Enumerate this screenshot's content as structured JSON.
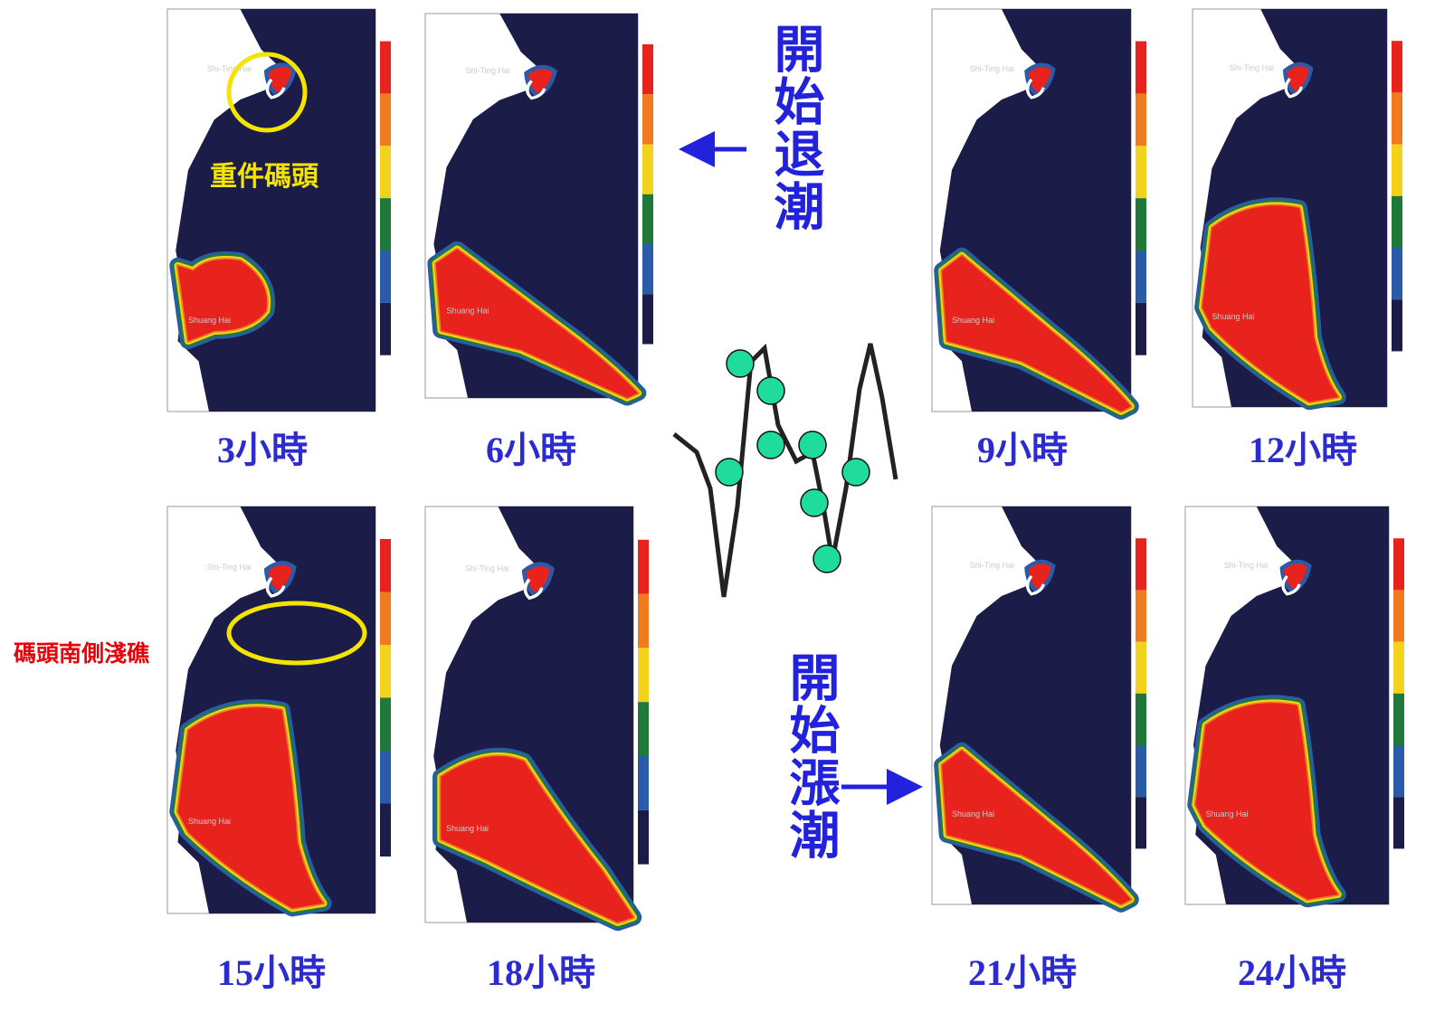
{
  "panels": [
    {
      "label": "3小時",
      "top_place": "Shi-Ting Hai",
      "bottom_place": "Shuang Hai"
    },
    {
      "label": "6小時",
      "top_place": "Shi-Ting Hai",
      "bottom_place": "Shuang Hai"
    },
    {
      "label": "9小時",
      "top_place": "Shi-Ting Hai",
      "bottom_place": "Shuang Hai"
    },
    {
      "label": "12小時",
      "top_place": "Shi-Ting Hai",
      "bottom_place": "Shuang Hai"
    },
    {
      "label": "15小時",
      "top_place": "Shi-Ting Hai",
      "bottom_place": "Shuang Hai"
    },
    {
      "label": "18小時",
      "top_place": "Shi-Ting Hai",
      "bottom_place": "Shuang Hai"
    },
    {
      "label": "21小時",
      "top_place": "Shi-Ting Hai",
      "bottom_place": "Shuang Hai"
    },
    {
      "label": "24小時",
      "top_place": "Shi-Ting Hai",
      "bottom_place": "Shuang Hai"
    }
  ],
  "annotations": {
    "pier": "重件碼頭",
    "reef": "碼頭南側淺礁",
    "ebb": "開始退潮",
    "flood": "開始漲潮"
  }
}
